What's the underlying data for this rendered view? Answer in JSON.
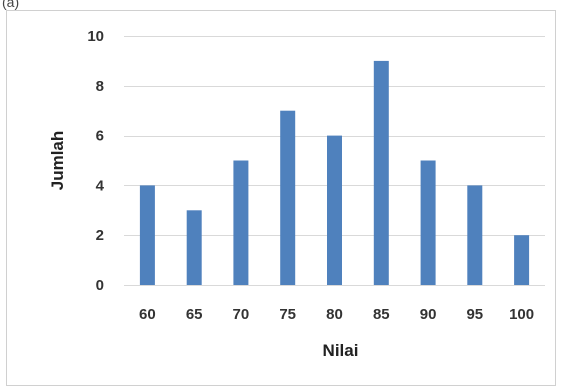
{
  "panel_label": "(a)",
  "chart_data": {
    "type": "bar",
    "title": "",
    "xlabel": "Nilai",
    "ylabel": "Jumlah",
    "categories": [
      "60",
      "65",
      "70",
      "75",
      "80",
      "85",
      "90",
      "95",
      "100"
    ],
    "values": [
      4,
      3,
      5,
      7,
      6,
      9,
      5,
      4,
      2
    ],
    "ylim": [
      0,
      10
    ],
    "yticks": [
      0,
      2,
      4,
      6,
      8,
      10
    ],
    "grid": true,
    "legend": "none",
    "bar_color": "#4f81bd",
    "grid_color": "#d9d9d9",
    "frame_color": "#d0d0d0"
  }
}
